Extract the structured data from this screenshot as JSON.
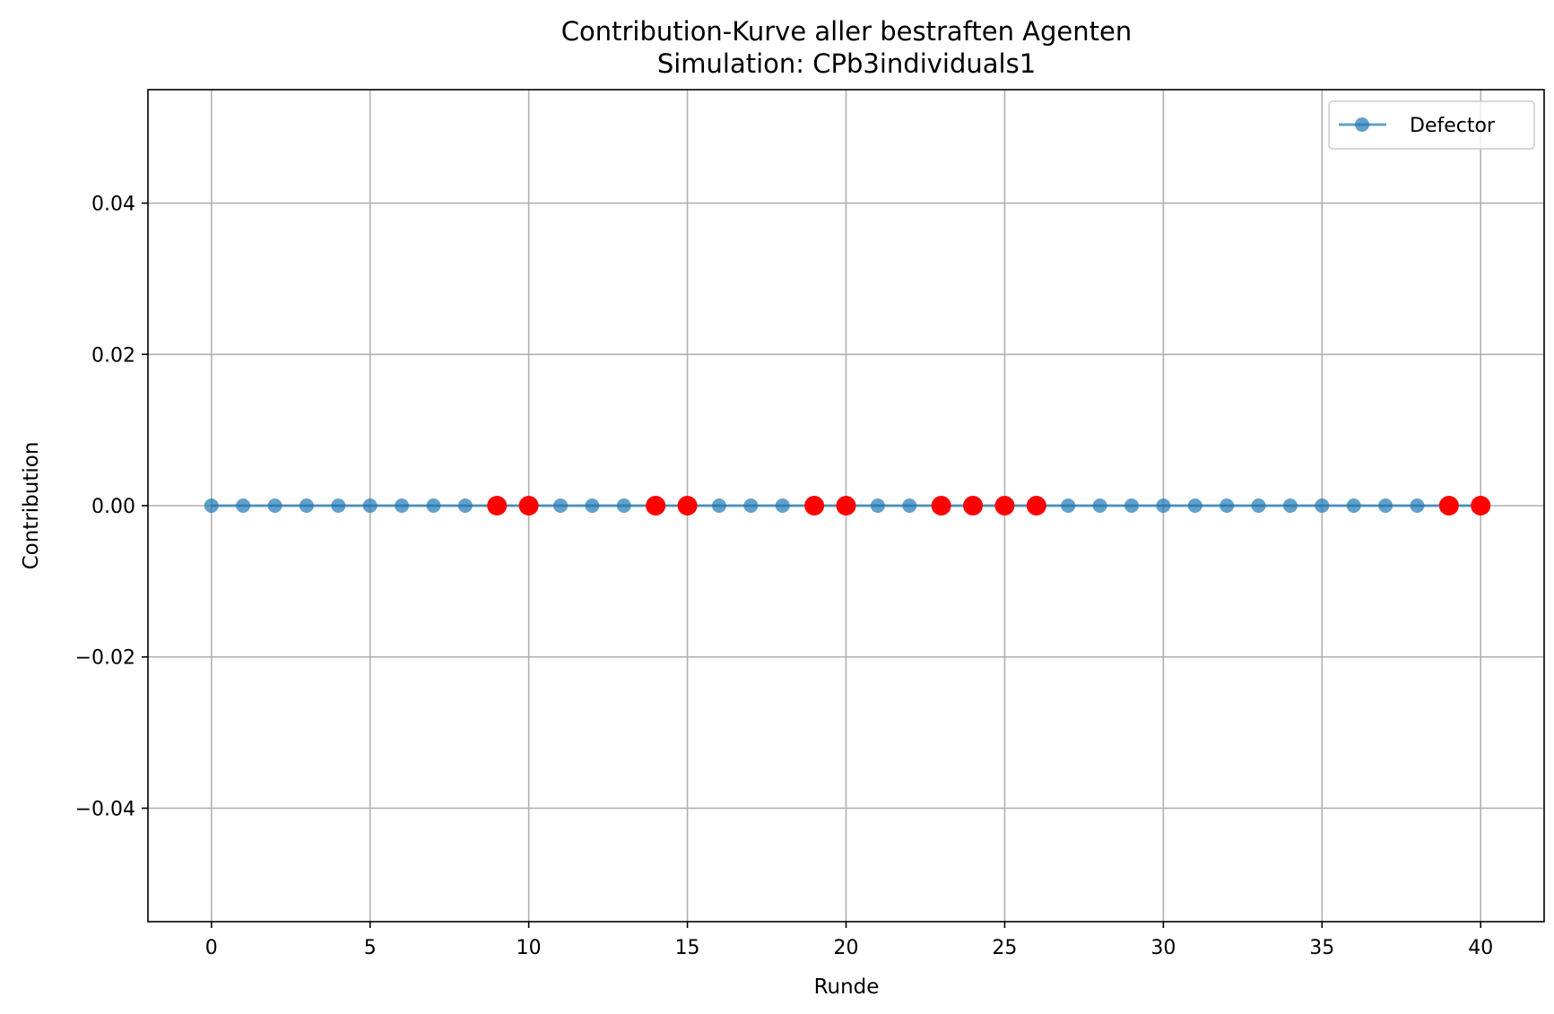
{
  "chart_data": {
    "type": "line",
    "title": "Contribution-Kurve aller bestraften Agenten",
    "subtitle": "Simulation: CPb3individuals1",
    "xlabel": "Runde",
    "ylabel": "Contribution",
    "xlim": [
      -2,
      42
    ],
    "ylim": [
      -0.055,
      0.055
    ],
    "x_ticks": [
      0,
      5,
      10,
      15,
      20,
      25,
      30,
      35,
      40
    ],
    "x_tick_labels": [
      "0",
      "5",
      "10",
      "15",
      "20",
      "25",
      "30",
      "35",
      "40"
    ],
    "y_ticks": [
      -0.04,
      -0.02,
      0.0,
      0.02,
      0.04
    ],
    "y_tick_labels": [
      "−0.04",
      "−0.02",
      "0.00",
      "0.02",
      "0.04"
    ],
    "grid": true,
    "legend_position": "top-right",
    "series": [
      {
        "name": "Defector",
        "color": "#1f77b4",
        "marker": "circle",
        "x": [
          0,
          1,
          2,
          3,
          4,
          5,
          6,
          7,
          8,
          9,
          10,
          11,
          12,
          13,
          14,
          15,
          16,
          17,
          18,
          19,
          20,
          21,
          22,
          23,
          24,
          25,
          26,
          27,
          28,
          29,
          30,
          31,
          32,
          33,
          34,
          35,
          36,
          37,
          38,
          39,
          40
        ],
        "y": [
          0,
          0,
          0,
          0,
          0,
          0,
          0,
          0,
          0,
          0,
          0,
          0,
          0,
          0,
          0,
          0,
          0,
          0,
          0,
          0,
          0,
          0,
          0,
          0,
          0,
          0,
          0,
          0,
          0,
          0,
          0,
          0,
          0,
          0,
          0,
          0,
          0,
          0,
          0,
          0,
          0
        ]
      }
    ],
    "highlight_points": {
      "color": "#ff0000",
      "x": [
        9,
        10,
        14,
        15,
        19,
        20,
        23,
        24,
        25,
        26,
        39,
        40
      ],
      "y": [
        0,
        0,
        0,
        0,
        0,
        0,
        0,
        0,
        0,
        0,
        0,
        0
      ]
    }
  }
}
